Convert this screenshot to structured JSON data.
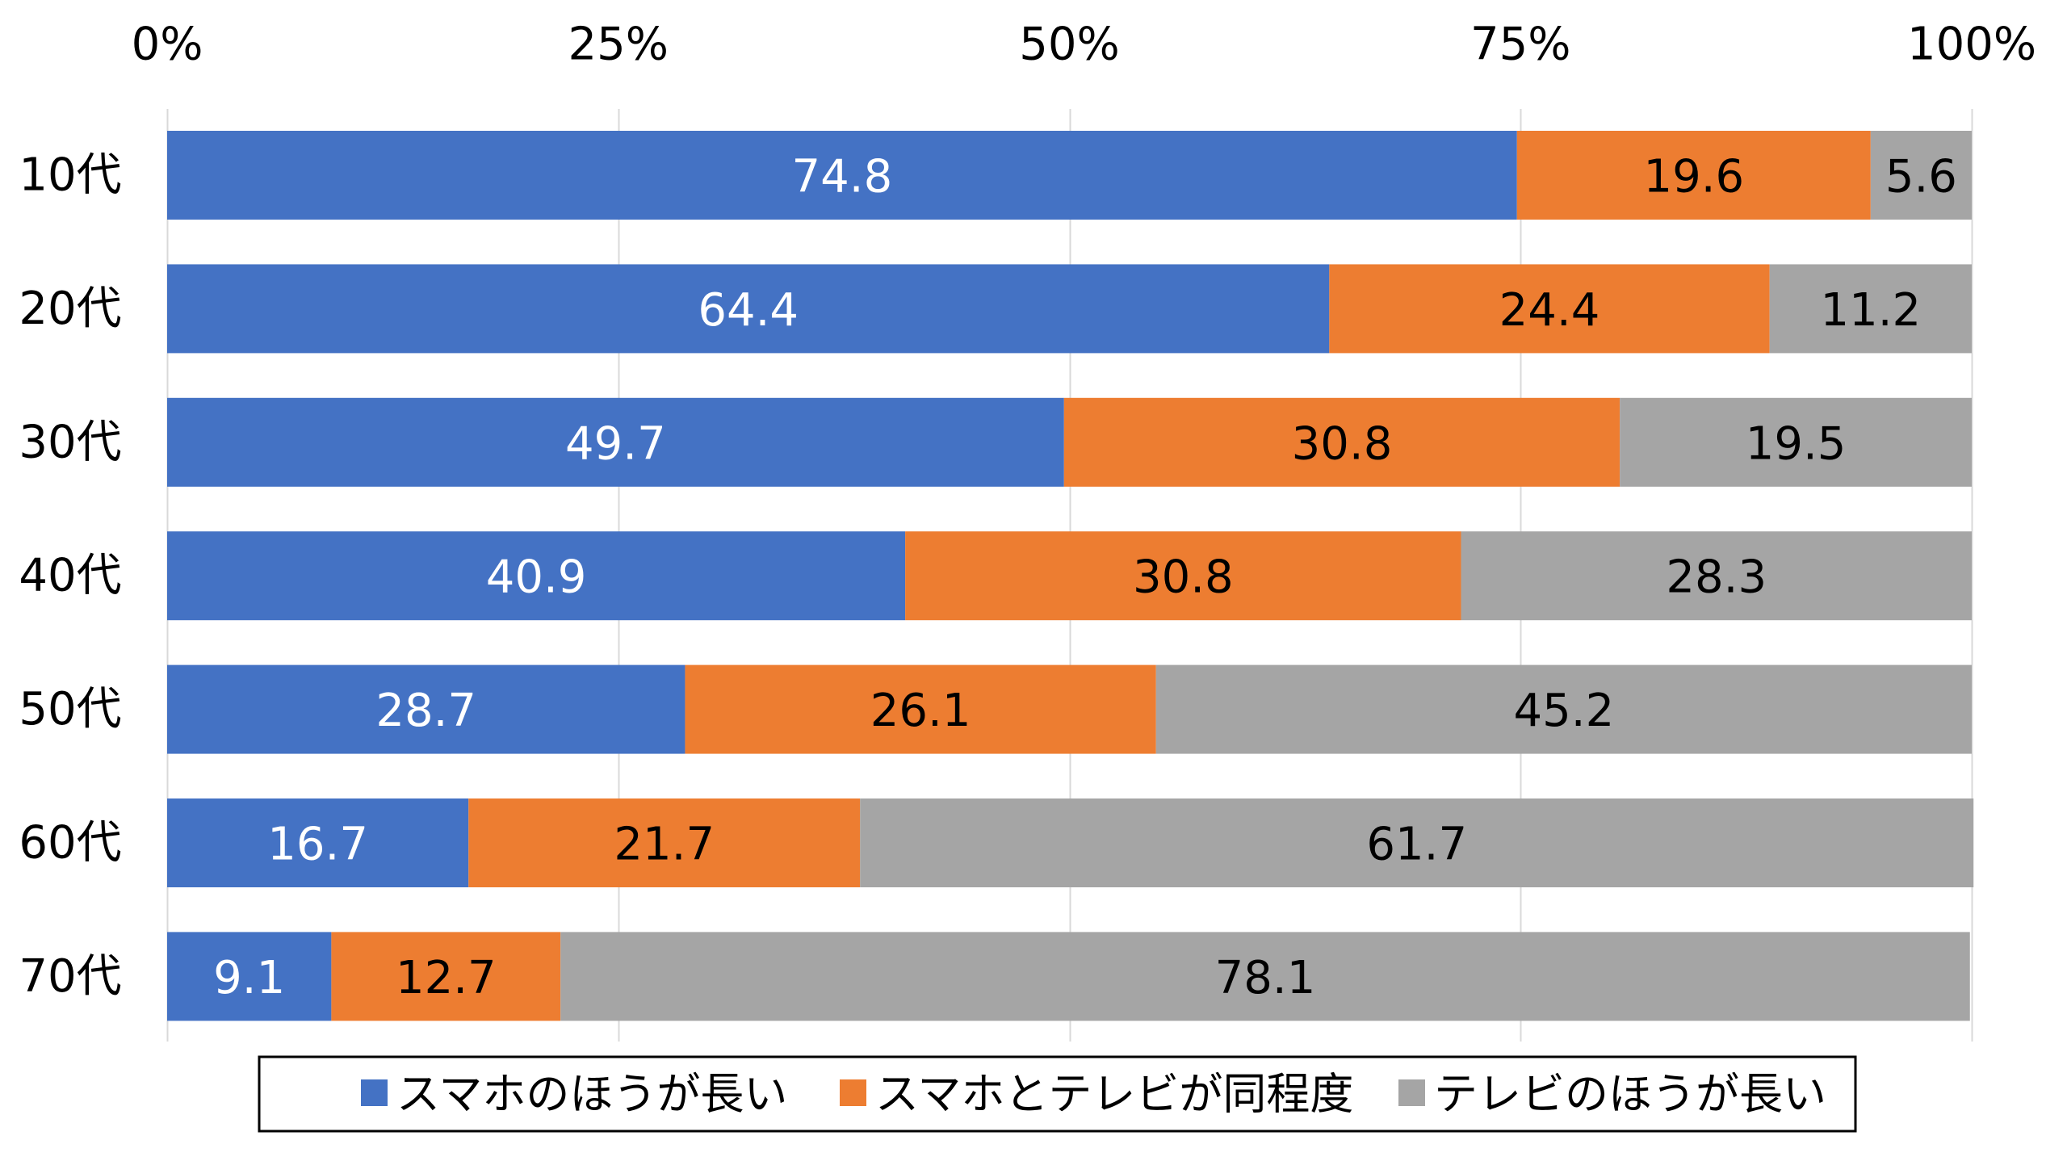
{
  "chart_data": {
    "type": "bar",
    "orientation": "horizontal",
    "stacked": "percent",
    "title": "",
    "xlabel": "",
    "ylabel": "",
    "xlim": [
      0,
      100
    ],
    "x_ticks": [
      "0%",
      "25%",
      "50%",
      "75%",
      "100%"
    ],
    "x_tick_values": [
      0,
      25,
      50,
      75,
      100
    ],
    "x_axis_position": "top",
    "grid": true,
    "categories": [
      "10代",
      "20代",
      "30代",
      "40代",
      "50代",
      "60代",
      "70代"
    ],
    "series": [
      {
        "name": "スマホのほうが長い",
        "color": "#4472C4",
        "label_color": "#FFFFFF",
        "values": [
          74.8,
          64.4,
          49.7,
          40.9,
          28.7,
          16.7,
          9.1
        ],
        "labels": [
          "74.8",
          "64.4",
          "49.7",
          "40.9",
          "28.7",
          "16.7",
          "9.1"
        ]
      },
      {
        "name": "スマホとテレビが同程度",
        "color": "#ED7D31",
        "label_color": "#000000",
        "values": [
          19.6,
          24.4,
          30.8,
          30.8,
          26.1,
          21.7,
          12.7
        ],
        "labels": [
          "19.6",
          "24.4",
          "30.8",
          "30.8",
          "26.1",
          "21.7",
          "12.7"
        ]
      },
      {
        "name": "テレビのほうが長い",
        "color": "#A5A5A5",
        "label_color": "#000000",
        "values": [
          5.6,
          11.2,
          19.5,
          28.3,
          45.2,
          61.7,
          78.1
        ],
        "labels": [
          "5.6",
          "11.2",
          "19.5",
          "28.3",
          "45.2",
          "61.7",
          "78.1"
        ]
      }
    ],
    "legend": {
      "position": "bottom",
      "bordered": true,
      "entries": [
        "スマホのほうが長い",
        "スマホとテレビが同程度",
        "テレビのほうが長い"
      ]
    },
    "gridline_color": "#D9D9D9"
  }
}
